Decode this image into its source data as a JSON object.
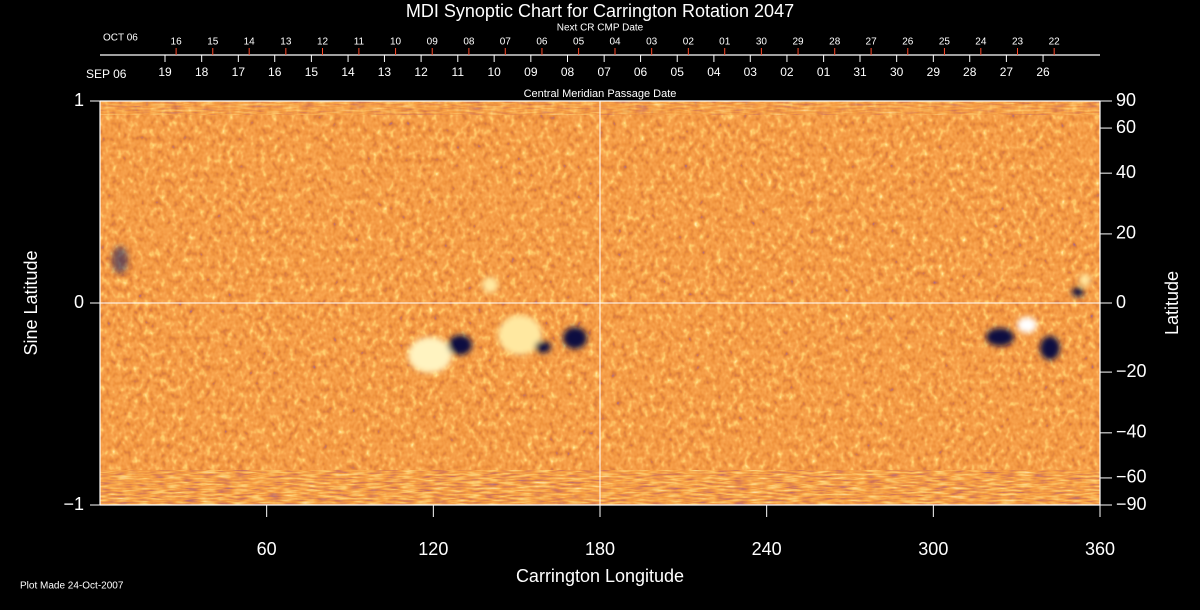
{
  "chart_data": {
    "type": "synoptic-map",
    "title": "MDI Synoptic Chart for Carrington Rotation 2047",
    "x_label": "Carrington Longitude",
    "y_label": "Sine Latitude",
    "y2_label": "Latitude",
    "xlim": [
      0,
      360
    ],
    "xticks": [
      60,
      120,
      180,
      240,
      300,
      360
    ],
    "ylim": [
      -1,
      1
    ],
    "yticks": [
      {
        "value": -1,
        "label": "−1"
      },
      0,
      1
    ],
    "y2lim": [
      -90,
      90
    ],
    "y2scale": "sine",
    "y2ticks": [
      {
        "value": -90,
        "label": "−90"
      },
      {
        "value": -60,
        "label": "−60"
      },
      {
        "value": -40,
        "label": "−40"
      },
      {
        "value": -20,
        "label": "−20"
      },
      0,
      20,
      40,
      60,
      90
    ],
    "center_lines": {
      "x": 180,
      "y": 0
    },
    "cmp_dates": {
      "title": "Central Meridian Passage Date",
      "start_label": "SEP 06",
      "color": "#ffffff",
      "categories": [
        "19",
        "18",
        "17",
        "16",
        "15",
        "14",
        "13",
        "12",
        "11",
        "10",
        "09",
        "08",
        "07",
        "06",
        "05",
        "04",
        "03",
        "02",
        "01",
        "31",
        "30",
        "29",
        "28",
        "27",
        "26"
      ],
      "x": [
        23.4,
        36.6,
        49.8,
        62.9,
        76.1,
        89.3,
        102.4,
        115.6,
        128.8,
        141.9,
        155.1,
        168.3,
        181.5,
        194.6,
        207.8,
        221.0,
        234.1,
        247.3,
        260.5,
        273.6,
        286.8,
        300.0,
        313.1,
        326.3,
        339.5
      ]
    },
    "next_cr_dates": {
      "title": "Next CR CMP Date",
      "start_label": "OCT 06",
      "color": "#ff4a2a",
      "categories": [
        "16",
        "15",
        "14",
        "13",
        "12",
        "11",
        "10",
        "09",
        "08",
        "07",
        "06",
        "05",
        "04",
        "03",
        "02",
        "01",
        "30",
        "29",
        "28",
        "27",
        "26",
        "25",
        "24",
        "23",
        "22"
      ],
      "x": [
        27.4,
        40.6,
        53.7,
        66.9,
        80.1,
        93.2,
        106.4,
        119.6,
        132.8,
        145.9,
        159.1,
        172.3,
        185.4,
        198.6,
        211.8,
        224.9,
        238.1,
        251.3,
        264.5,
        277.6,
        290.8,
        304.0,
        317.1,
        330.3,
        343.5
      ]
    }
  },
  "footer": "Plot Made 24-Oct-2007"
}
